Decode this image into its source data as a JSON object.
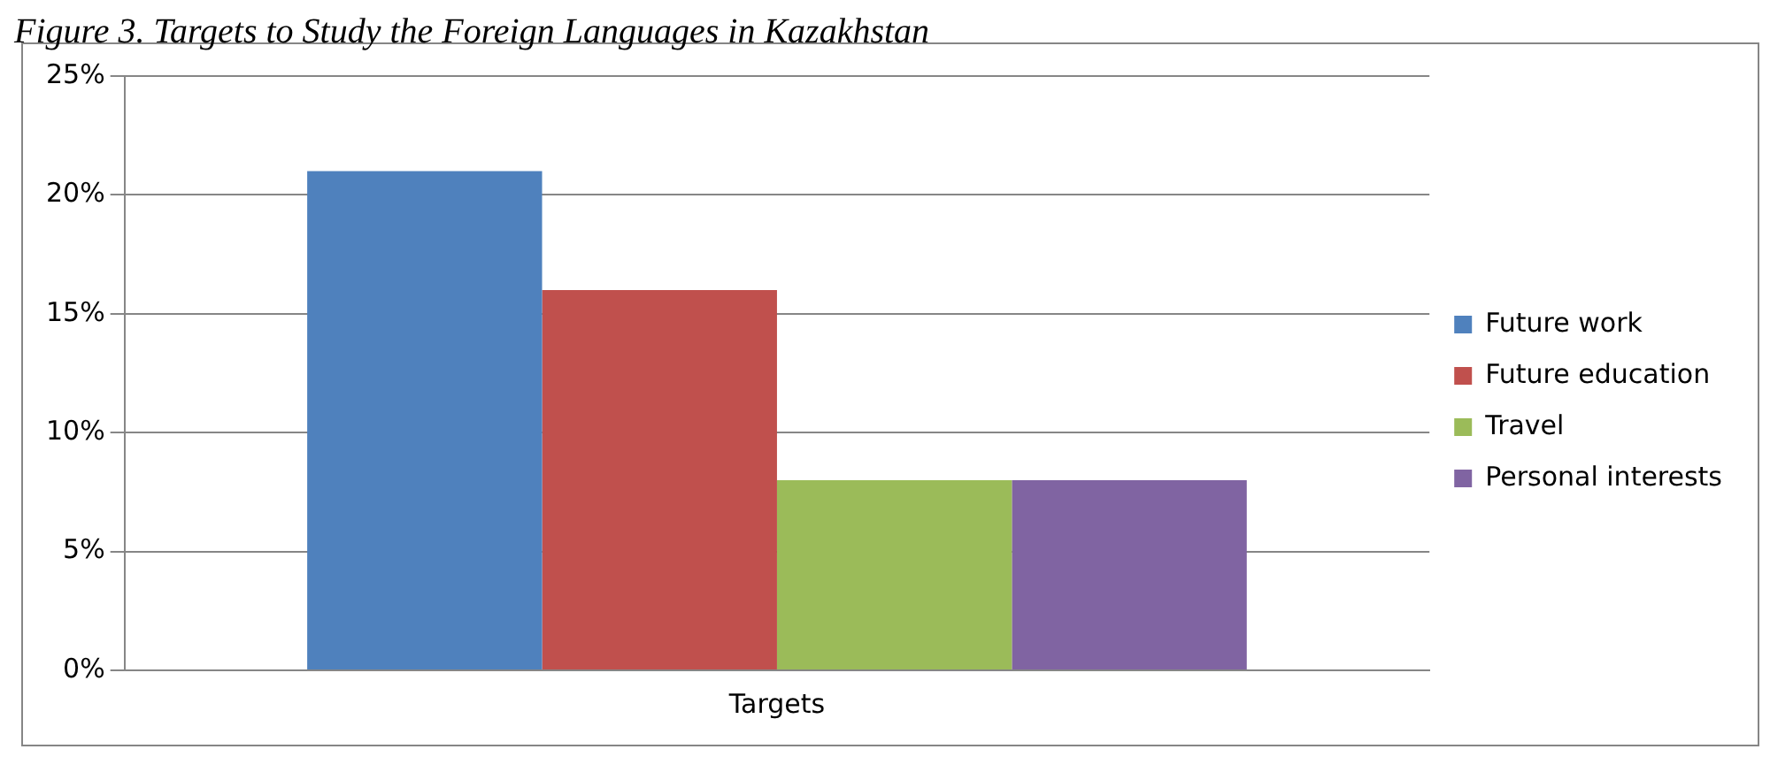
{
  "chart_data": {
    "type": "bar",
    "title": "Figure 3. Targets to Study the Foreign Languages in Kazakhstan",
    "categories": [
      "Targets"
    ],
    "series": [
      {
        "name": "Future work",
        "color": "#4f81bd",
        "values": [
          21
        ]
      },
      {
        "name": "Future education",
        "color": "#c0504d",
        "values": [
          16
        ]
      },
      {
        "name": "Travel",
        "color": "#9bbb59",
        "values": [
          8
        ]
      },
      {
        "name": "Personal interests",
        "color": "#8064a2",
        "values": [
          8
        ]
      }
    ],
    "ylim": [
      0,
      25
    ],
    "yticks": [
      {
        "value": 0,
        "label": "0%"
      },
      {
        "value": 5,
        "label": "5%"
      },
      {
        "value": 10,
        "label": "10%"
      },
      {
        "value": 15,
        "label": "15%"
      },
      {
        "value": 20,
        "label": "20%"
      },
      {
        "value": 25,
        "label": "25%"
      }
    ],
    "grid": "y",
    "legend": "right"
  }
}
